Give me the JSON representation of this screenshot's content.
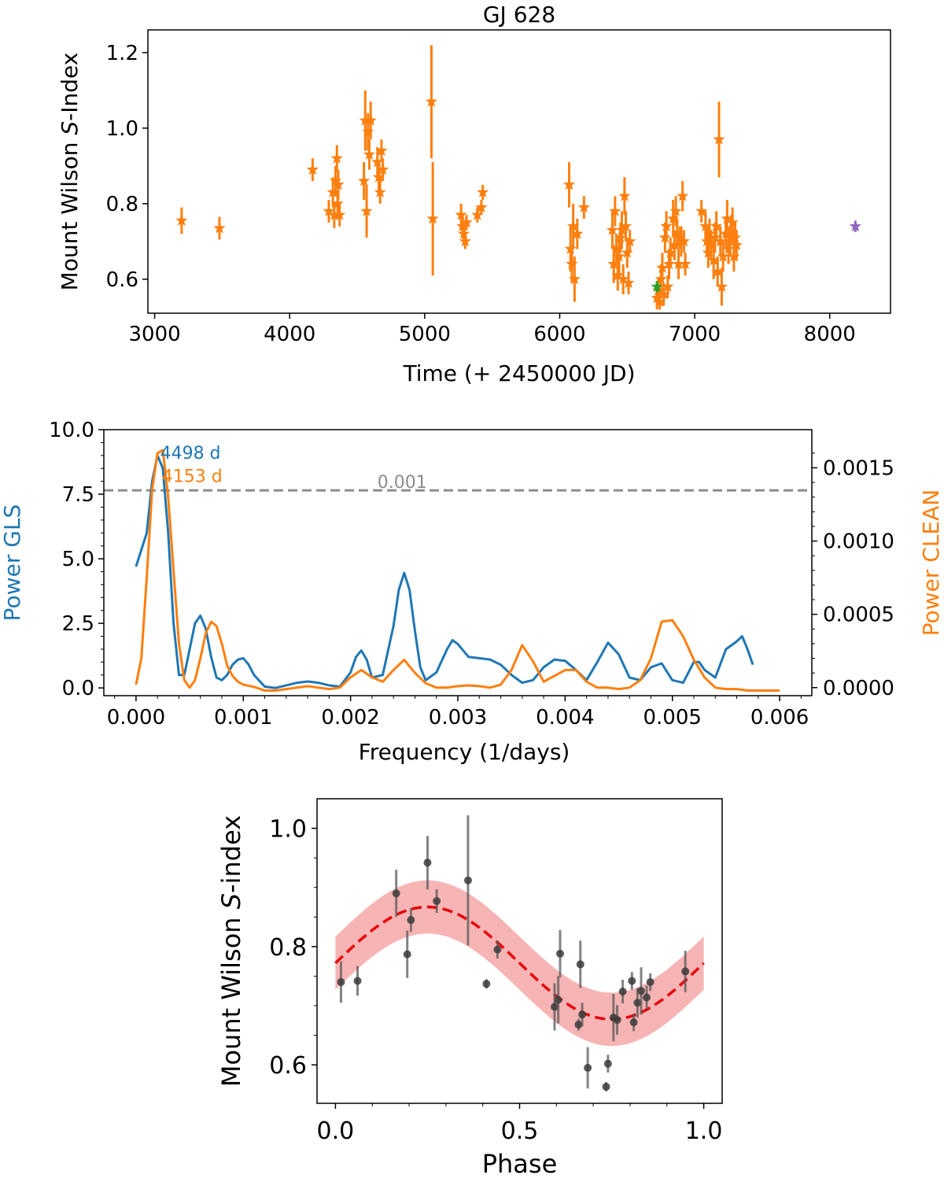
{
  "chart_data": [
    {
      "type": "scatter",
      "title": "GJ 628",
      "xlabel": "Time (+ 2450000 JD)",
      "ylabel_parts": [
        "Mount Wilson ",
        "S",
        "-Index"
      ],
      "xlim": [
        2950,
        8450
      ],
      "ylim": [
        0.51,
        1.26
      ],
      "xticks": [
        3000,
        4000,
        5000,
        6000,
        7000,
        8000
      ],
      "yticks": [
        0.6,
        0.8,
        1.0,
        1.2
      ],
      "series": [
        {
          "name": "orange",
          "color": "#ff7f0e",
          "points": [
            [
              3200,
              0.755,
              0.035
            ],
            [
              3480,
              0.735,
              0.03
            ],
            [
              4170,
              0.89,
              0.03
            ],
            [
              4290,
              0.78,
              0.03
            ],
            [
              4320,
              0.83,
              0.04
            ],
            [
              4330,
              0.77,
              0.035
            ],
            [
              4340,
              0.86,
              0.04
            ],
            [
              4350,
              0.92,
              0.035
            ],
            [
              4355,
              0.8,
              0.035
            ],
            [
              4360,
              0.85,
              0.04
            ],
            [
              4370,
              0.77,
              0.03
            ],
            [
              4550,
              0.86,
              0.05
            ],
            [
              4560,
              1.02,
              0.08
            ],
            [
              4570,
              0.78,
              0.07
            ],
            [
              4580,
              0.99,
              0.05
            ],
            [
              4590,
              0.93,
              0.04
            ],
            [
              4600,
              1.02,
              0.05
            ],
            [
              4650,
              0.91,
              0.04
            ],
            [
              4660,
              0.87,
              0.04
            ],
            [
              4670,
              0.83,
              0.03
            ],
            [
              4680,
              0.94,
              0.03
            ],
            [
              4690,
              0.89,
              0.03
            ],
            [
              5050,
              1.07,
              0.15
            ],
            [
              5060,
              0.76,
              0.15
            ],
            [
              5270,
              0.77,
              0.03
            ],
            [
              5280,
              0.74,
              0.03
            ],
            [
              5290,
              0.72,
              0.02
            ],
            [
              5300,
              0.7,
              0.02
            ],
            [
              5310,
              0.75,
              0.02
            ],
            [
              5390,
              0.77,
              0.02
            ],
            [
              5420,
              0.79,
              0.02
            ],
            [
              5430,
              0.83,
              0.02
            ],
            [
              6070,
              0.85,
              0.06
            ],
            [
              6080,
              0.68,
              0.06
            ],
            [
              6090,
              0.64,
              0.05
            ],
            [
              6100,
              0.74,
              0.06
            ],
            [
              6110,
              0.6,
              0.06
            ],
            [
              6130,
              0.72,
              0.04
            ],
            [
              6180,
              0.79,
              0.03
            ],
            [
              6390,
              0.73,
              0.05
            ],
            [
              6400,
              0.64,
              0.05
            ],
            [
              6410,
              0.78,
              0.04
            ],
            [
              6420,
              0.68,
              0.04
            ],
            [
              6430,
              0.61,
              0.04
            ],
            [
              6440,
              0.66,
              0.05
            ],
            [
              6450,
              0.71,
              0.04
            ],
            [
              6460,
              0.73,
              0.05
            ],
            [
              6470,
              0.6,
              0.04
            ],
            [
              6480,
              0.82,
              0.05
            ],
            [
              6490,
              0.74,
              0.04
            ],
            [
              6500,
              0.67,
              0.04
            ],
            [
              6510,
              0.59,
              0.03
            ],
            [
              6520,
              0.7,
              0.03
            ],
            [
              6720,
              0.55,
              0.03
            ],
            [
              6730,
              0.57,
              0.03
            ],
            [
              6740,
              0.54,
              0.02
            ],
            [
              6750,
              0.6,
              0.04
            ],
            [
              6760,
              0.63,
              0.04
            ],
            [
              6770,
              0.56,
              0.03
            ],
            [
              6780,
              0.71,
              0.04
            ],
            [
              6790,
              0.74,
              0.04
            ],
            [
              6800,
              0.58,
              0.03
            ],
            [
              6810,
              0.64,
              0.04
            ],
            [
              6820,
              0.67,
              0.04
            ],
            [
              6840,
              0.76,
              0.05
            ],
            [
              6850,
              0.69,
              0.04
            ],
            [
              6860,
              0.78,
              0.04
            ],
            [
              6870,
              0.72,
              0.04
            ],
            [
              6880,
              0.64,
              0.04
            ],
            [
              6890,
              0.71,
              0.03
            ],
            [
              6900,
              0.7,
              0.04
            ],
            [
              6910,
              0.82,
              0.04
            ],
            [
              6920,
              0.7,
              0.03
            ],
            [
              6930,
              0.64,
              0.03
            ],
            [
              7050,
              0.78,
              0.03
            ],
            [
              7080,
              0.74,
              0.04
            ],
            [
              7090,
              0.7,
              0.04
            ],
            [
              7100,
              0.67,
              0.04
            ],
            [
              7110,
              0.72,
              0.04
            ],
            [
              7120,
              0.69,
              0.04
            ],
            [
              7140,
              0.65,
              0.05
            ],
            [
              7150,
              0.71,
              0.04
            ],
            [
              7160,
              0.74,
              0.04
            ],
            [
              7170,
              0.62,
              0.04
            ],
            [
              7180,
              0.97,
              0.1
            ],
            [
              7190,
              0.7,
              0.04
            ],
            [
              7200,
              0.58,
              0.05
            ],
            [
              7210,
              0.66,
              0.04
            ],
            [
              7230,
              0.72,
              0.04
            ],
            [
              7240,
              0.76,
              0.05
            ],
            [
              7250,
              0.68,
              0.04
            ],
            [
              7260,
              0.7,
              0.04
            ],
            [
              7270,
              0.73,
              0.04
            ],
            [
              7280,
              0.75,
              0.04
            ],
            [
              7290,
              0.66,
              0.04
            ],
            [
              7300,
              0.71,
              0.04
            ],
            [
              7310,
              0.69,
              0.04
            ]
          ]
        },
        {
          "name": "green",
          "color": "#2ca02c",
          "points": [
            [
              6720,
              0.58,
              0.015
            ]
          ]
        },
        {
          "name": "purple",
          "color": "#9467bd",
          "points": [
            [
              8190,
              0.74,
              0.015
            ]
          ]
        }
      ]
    },
    {
      "type": "line",
      "xlabel": "Frequency (1/days)",
      "ylabel_left": "Power GLS",
      "ylabel_right": "Power CLEAN",
      "xlim": [
        -0.0003,
        0.0063
      ],
      "ylim_left": [
        -0.3,
        10.0
      ],
      "ylim_right": [
        -5.5e-05,
        0.00176
      ],
      "xticks": [
        0.0,
        0.001,
        0.002,
        0.003,
        0.004,
        0.005,
        0.006
      ],
      "xtick_labels": [
        "0.000",
        "0.001",
        "0.002",
        "0.003",
        "0.004",
        "0.005",
        "0.006"
      ],
      "yticks_left": [
        0.0,
        2.5,
        5.0,
        7.5,
        10.0
      ],
      "ytick_labels_left": [
        "0.0",
        "2.5",
        "5.0",
        "7.5",
        "10.0"
      ],
      "yticks_right": [
        0.0,
        0.0005,
        0.001,
        0.0015
      ],
      "ytick_labels_right": [
        "0.0000",
        "0.0005",
        "0.0010",
        "0.0015"
      ],
      "threshold": {
        "value": 7.65,
        "label": "0.001",
        "label_x": 0.00225
      },
      "peak_labels": [
        {
          "text": "4498 d",
          "x": 0.000225,
          "y": 9.0,
          "color": "#1f77b4"
        },
        {
          "text": "4153 d",
          "x": 0.000241,
          "y": 8.1,
          "color": "#ff7f0e"
        }
      ],
      "series": [
        {
          "name": "GLS",
          "color": "#1f77b4",
          "axis": "left",
          "x": [
            0.0,
            0.0001,
            0.00015,
            0.0002,
            0.00025,
            0.0003,
            0.00035,
            0.0004,
            0.00045,
            0.0005,
            0.00055,
            0.0006,
            0.00065,
            0.0007,
            0.00075,
            0.0008,
            0.00085,
            0.0009,
            0.00095,
            0.001,
            0.00105,
            0.0011,
            0.0012,
            0.0013,
            0.0014,
            0.0015,
            0.0016,
            0.0017,
            0.0018,
            0.0019,
            0.002,
            0.00205,
            0.0021,
            0.00215,
            0.0022,
            0.0023,
            0.0024,
            0.00245,
            0.0025,
            0.00255,
            0.0026,
            0.00265,
            0.0027,
            0.0028,
            0.0029,
            0.00295,
            0.003,
            0.0031,
            0.0032,
            0.0033,
            0.0034,
            0.0035,
            0.0036,
            0.0037,
            0.0038,
            0.0039,
            0.004,
            0.0041,
            0.0042,
            0.0043,
            0.0044,
            0.0045,
            0.0046,
            0.0047,
            0.0048,
            0.0049,
            0.005,
            0.0051,
            0.0052,
            0.00525,
            0.0053,
            0.0054,
            0.0055,
            0.0056,
            0.00565,
            0.0057,
            0.00575
          ],
          "y": [
            4.7,
            6.0,
            8.0,
            9.0,
            8.5,
            6.0,
            2.5,
            0.5,
            0.5,
            1.5,
            2.5,
            2.8,
            2.3,
            1.2,
            0.4,
            0.3,
            0.5,
            0.9,
            1.1,
            1.15,
            0.9,
            0.5,
            0.05,
            0.0,
            0.1,
            0.2,
            0.25,
            0.2,
            0.1,
            0.05,
            0.6,
            1.2,
            1.45,
            1.1,
            0.4,
            0.5,
            2.4,
            3.8,
            4.45,
            3.8,
            2.2,
            0.8,
            0.3,
            0.6,
            1.5,
            1.85,
            1.7,
            1.2,
            1.15,
            1.1,
            0.9,
            0.5,
            0.2,
            0.3,
            0.8,
            1.1,
            1.05,
            0.7,
            0.3,
            1.0,
            1.75,
            1.3,
            0.4,
            0.3,
            0.8,
            0.95,
            0.3,
            0.2,
            1.0,
            1.0,
            0.7,
            0.4,
            1.5,
            1.8,
            2.0,
            1.5,
            0.9
          ]
        },
        {
          "name": "CLEAN",
          "color": "#ff7f0e",
          "axis": "right",
          "x": [
            0.0,
            5e-05,
            0.0001,
            0.00015,
            0.0002,
            0.00025,
            0.0003,
            0.00035,
            0.0004,
            0.00045,
            0.0005,
            0.00055,
            0.0006,
            0.00065,
            0.0007,
            0.00075,
            0.0008,
            0.00085,
            0.0009,
            0.00095,
            0.001,
            0.0011,
            0.0012,
            0.0013,
            0.0014,
            0.0015,
            0.0016,
            0.0017,
            0.0018,
            0.0019,
            0.002,
            0.0021,
            0.0022,
            0.0023,
            0.0024,
            0.0025,
            0.0026,
            0.0027,
            0.0028,
            0.0029,
            0.003,
            0.0031,
            0.0032,
            0.0033,
            0.0034,
            0.0035,
            0.0036,
            0.0037,
            0.0038,
            0.0039,
            0.004,
            0.0041,
            0.0042,
            0.0043,
            0.0044,
            0.0045,
            0.0046,
            0.0047,
            0.0048,
            0.0049,
            0.005,
            0.0051,
            0.0052,
            0.0053,
            0.0054,
            0.0055,
            0.0056,
            0.0057,
            0.0058,
            0.0059,
            0.006
          ],
          "y": [
            2e-05,
            0.0002,
            0.00075,
            0.00135,
            0.0016,
            0.00162,
            0.0013,
            0.0008,
            0.0003,
            5e-05,
            0.0,
            5e-05,
            0.0002,
            0.00037,
            0.00045,
            0.00042,
            0.0003,
            0.00015,
            8e-05,
            4e-05,
            2e-05,
            5e-06,
            -2e-05,
            -2e-05,
            -1e-05,
            0.0,
            1e-05,
            0.0,
            -1e-05,
            0.0,
            7e-05,
            0.00012,
            7e-05,
            4e-05,
            0.00012,
            0.00019,
            0.0001,
            3e-05,
            0.0,
            0.0,
            1e-05,
            1.5e-05,
            1e-05,
            0.0,
            2e-05,
            0.00012,
            0.00029,
            0.00018,
            4e-05,
            8e-05,
            0.00012,
            0.00012,
            4e-05,
            0.0,
            0.0,
            -1e-05,
            0.0,
            5e-05,
            0.0002,
            0.00045,
            0.00046,
            0.00035,
            0.00019,
            7e-05,
            0.0,
            -1e-05,
            -1e-05,
            -2e-05,
            -2e-05,
            -2e-05,
            -2e-05
          ]
        }
      ]
    },
    {
      "type": "scatter",
      "xlabel": "Phase",
      "ylabel_parts": [
        "Mount Wilson ",
        "S",
        "-index"
      ],
      "xlim": [
        -0.05,
        1.05
      ],
      "ylim": [
        0.535,
        1.05
      ],
      "xticks": [
        0.0,
        0.5,
        1.0
      ],
      "xtick_labels": [
        "0.0",
        "0.5",
        "1.0"
      ],
      "yticks": [
        0.6,
        0.8,
        1.0
      ],
      "ytick_labels": [
        "0.6",
        "0.8",
        "1.0"
      ],
      "model": {
        "mean": 0.772,
        "amplitude": 0.095,
        "peak_phase": 0.25,
        "band_halfwidth": 0.045,
        "line_color": "#e8000b",
        "band_color": "#f7b4b4"
      },
      "points": [
        [
          0.015,
          0.74,
          0.035
        ],
        [
          0.06,
          0.742,
          0.025
        ],
        [
          0.165,
          0.89,
          0.04
        ],
        [
          0.195,
          0.787,
          0.04
        ],
        [
          0.205,
          0.845,
          0.02
        ],
        [
          0.25,
          0.942,
          0.045
        ],
        [
          0.275,
          0.877,
          0.02
        ],
        [
          0.36,
          0.912,
          0.11
        ],
        [
          0.41,
          0.737,
          0.008
        ],
        [
          0.44,
          0.795,
          0.015
        ],
        [
          0.595,
          0.698,
          0.04
        ],
        [
          0.605,
          0.71,
          0.04
        ],
        [
          0.61,
          0.788,
          0.04
        ],
        [
          0.66,
          0.668,
          0.01
        ],
        [
          0.665,
          0.77,
          0.04
        ],
        [
          0.67,
          0.685,
          0.02
        ],
        [
          0.685,
          0.595,
          0.035
        ],
        [
          0.735,
          0.563,
          0.008
        ],
        [
          0.74,
          0.602,
          0.015
        ],
        [
          0.755,
          0.68,
          0.04
        ],
        [
          0.765,
          0.676,
          0.025
        ],
        [
          0.78,
          0.724,
          0.02
        ],
        [
          0.805,
          0.742,
          0.015
        ],
        [
          0.81,
          0.672,
          0.015
        ],
        [
          0.82,
          0.705,
          0.025
        ],
        [
          0.83,
          0.725,
          0.04
        ],
        [
          0.845,
          0.714,
          0.02
        ],
        [
          0.855,
          0.74,
          0.015
        ],
        [
          0.95,
          0.758,
          0.035
        ]
      ]
    }
  ]
}
